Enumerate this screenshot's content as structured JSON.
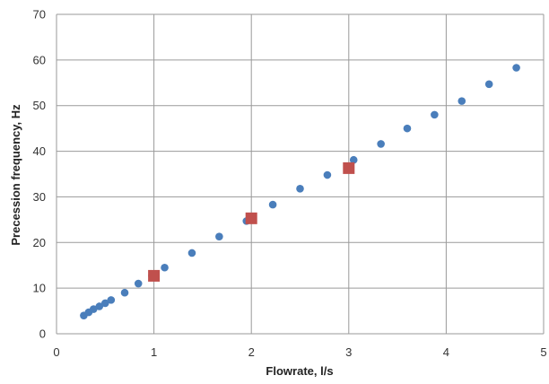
{
  "chart_data": {
    "type": "scatter",
    "title": "",
    "xlabel": "Flowrate, l/s",
    "ylabel": "Precession frequency, Hz",
    "xlim": [
      0,
      5
    ],
    "ylim": [
      0,
      70
    ],
    "x_ticks": [
      0,
      1,
      2,
      3,
      4,
      5
    ],
    "y_ticks": [
      0,
      10,
      20,
      30,
      40,
      50,
      60,
      70
    ],
    "grid": true,
    "legend": "none",
    "series": [
      {
        "marker": "circle",
        "color": "#4a7ebb",
        "points": [
          [
            0.28,
            4.0
          ],
          [
            0.33,
            4.7
          ],
          [
            0.38,
            5.4
          ],
          [
            0.44,
            6.0
          ],
          [
            0.5,
            6.7
          ],
          [
            0.56,
            7.4
          ],
          [
            0.7,
            9.0
          ],
          [
            0.84,
            11.0
          ],
          [
            0.98,
            12.7
          ],
          [
            1.11,
            14.5
          ],
          [
            1.39,
            17.7
          ],
          [
            1.67,
            21.3
          ],
          [
            1.95,
            24.7
          ],
          [
            2.22,
            28.3
          ],
          [
            2.5,
            31.8
          ],
          [
            2.78,
            34.8
          ],
          [
            3.05,
            38.1
          ],
          [
            3.33,
            41.6
          ],
          [
            3.6,
            45.0
          ],
          [
            3.88,
            48.0
          ],
          [
            4.16,
            51.0
          ],
          [
            4.44,
            54.7
          ],
          [
            4.72,
            58.3
          ]
        ]
      },
      {
        "marker": "square",
        "color": "#c0504d",
        "points": [
          [
            1.0,
            12.7
          ],
          [
            2.0,
            25.3
          ],
          [
            3.0,
            36.3
          ]
        ]
      }
    ]
  }
}
